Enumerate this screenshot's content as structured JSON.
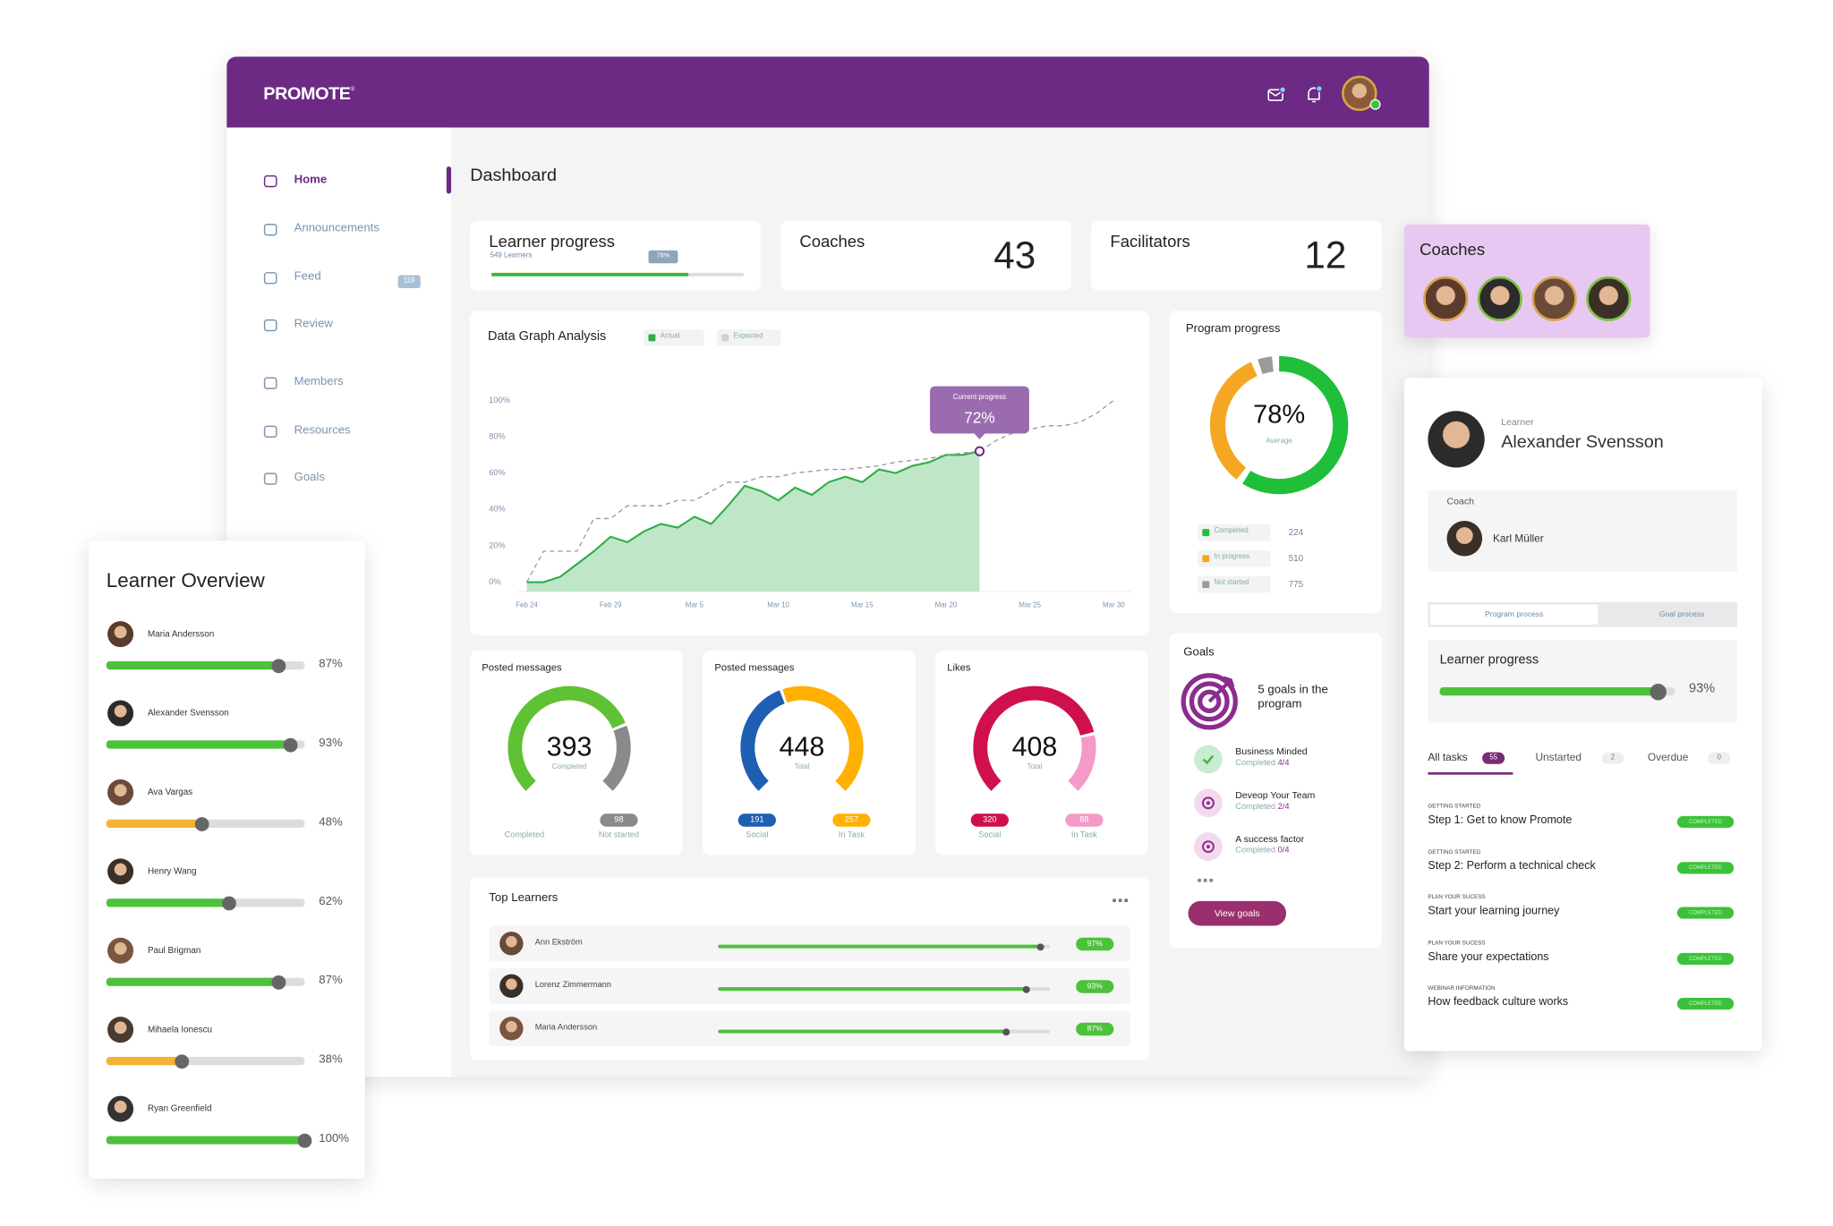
{
  "header": {
    "brand": "PROMOTE",
    "trademark": "®"
  },
  "sidebar": {
    "items": [
      {
        "label": "Home",
        "active": true
      },
      {
        "label": "Announcements"
      },
      {
        "label": "Feed",
        "badge": 119
      },
      {
        "label": "Review"
      },
      {
        "label": "Members"
      },
      {
        "label": "Resources"
      },
      {
        "label": "Goals"
      }
    ]
  },
  "page_title": "Dashboard",
  "learner_progress": {
    "title": "Learner progress",
    "subtitle": "549 Learners",
    "value": 78,
    "label": "78%"
  },
  "coaches": {
    "title": "Coaches",
    "value": 43
  },
  "facilitators": {
    "title": "Facilitators",
    "value": 12
  },
  "coaches_panel": {
    "title": "Coaches"
  },
  "data_graph": {
    "type": "area",
    "title": "Data Graph Analysis",
    "categories": [
      "Feb 24",
      null,
      null,
      null,
      null,
      "Feb 29",
      null,
      null,
      null,
      null,
      "Mar 5",
      null,
      null,
      null,
      null,
      "Mar 10",
      null,
      null,
      null,
      null,
      "Mar 15",
      null,
      null,
      null,
      null,
      "Mar 20",
      null,
      null,
      null,
      null,
      "Mar 25",
      null,
      null,
      null,
      null,
      "Mar 30"
    ],
    "series": [
      {
        "name": "Actual",
        "color": "#2fae46",
        "fill": "#bfe6c7",
        "values": [
          0,
          0,
          3,
          10,
          17,
          25,
          22,
          28,
          32,
          30,
          36,
          32,
          42,
          53,
          50,
          45,
          52,
          48,
          55,
          58,
          55,
          62,
          60,
          64,
          66,
          70,
          70,
          72,
          null,
          null,
          null,
          null,
          null,
          null,
          null,
          null
        ]
      },
      {
        "name": "Expected",
        "color": "#9a9a9a",
        "dashed": true,
        "values": [
          0,
          17,
          17,
          17,
          35,
          35,
          42,
          42,
          42,
          45,
          45,
          50,
          55,
          55,
          58,
          58,
          60,
          61,
          62,
          62,
          63,
          64,
          66,
          67,
          68,
          70,
          71,
          72,
          78,
          82,
          84,
          86,
          86,
          88,
          93,
          100
        ]
      }
    ],
    "ylim": [
      0,
      100
    ],
    "yticks": [
      {
        "value": 0,
        "label": "0%"
      },
      {
        "value": 20,
        "label": "20%"
      },
      {
        "value": 40,
        "label": "40%"
      },
      {
        "value": 60,
        "label": "60%"
      },
      {
        "value": 80,
        "label": "80%"
      },
      {
        "value": 100,
        "label": "100%"
      }
    ],
    "grid": false,
    "tooltip": {
      "title": "Current progress",
      "value": 72,
      "label": "72%"
    }
  },
  "program_progress": {
    "title": "Program progress",
    "center": "78%",
    "center_sub": "Average",
    "legend": [
      {
        "label": "Completed",
        "value": 224,
        "color": "#1fbf3a"
      },
      {
        "label": "In progress",
        "value": 510,
        "color": "#f5a623"
      },
      {
        "label": "Not started",
        "value": 775,
        "color": "#9a9a9a"
      }
    ]
  },
  "gauges": [
    {
      "title": "Posted messages",
      "value": 393,
      "sub": "Completed",
      "legend": [
        {
          "label": "Completed",
          "color": "#5ec234"
        },
        {
          "label": "Not started",
          "value": 98,
          "color": "#8a8a8a"
        }
      ]
    },
    {
      "title": "Posted messages",
      "value": 448,
      "sub": "Total",
      "legend": [
        {
          "label": "Social",
          "value": 191,
          "color": "#1e5fb4"
        },
        {
          "label": "In Task",
          "value": 257,
          "color": "#ffb000"
        }
      ]
    },
    {
      "title": "Likes",
      "value": 408,
      "sub": "Total",
      "legend": [
        {
          "label": "Social",
          "value": 320,
          "color": "#d0104c"
        },
        {
          "label": "In Task",
          "value": 88,
          "color": "#f59ac8"
        }
      ]
    }
  ],
  "top_learners": {
    "title": "Top Learners",
    "items": [
      {
        "name": "Ann Ekström",
        "value": 97,
        "label": "97%"
      },
      {
        "name": "Lorenz Zimmermann",
        "value": 93,
        "label": "93%"
      },
      {
        "name": "Maria Andersson",
        "value": 87,
        "label": "87%"
      }
    ]
  },
  "goals": {
    "title": "Goals",
    "summary": "5 goals in the program",
    "button": "View goals",
    "items": [
      {
        "title": "Business Minded",
        "status": "Completed",
        "count": "4/4"
      },
      {
        "title": "Deveop Your Team",
        "status": "Completed",
        "count": "2/4"
      },
      {
        "title": "A success factor",
        "status": "Completed",
        "count": "0/4"
      }
    ]
  },
  "learner_overview": {
    "title": "Learner Overview",
    "items": [
      {
        "name": "Maria Andersson",
        "value": 87,
        "label": "87%",
        "color": "#4cc23a"
      },
      {
        "name": "Alexander Svensson",
        "value": 93,
        "label": "93%",
        "color": "#4cc23a"
      },
      {
        "name": "Ava Vargas",
        "value": 48,
        "label": "48%",
        "color": "#f5b335"
      },
      {
        "name": "Henry Wang",
        "value": 62,
        "label": "62%",
        "color": "#4cc23a"
      },
      {
        "name": "Paul Brigman",
        "value": 87,
        "label": "87%",
        "color": "#4cc23a"
      },
      {
        "name": "Mihaela Ionescu",
        "value": 38,
        "label": "38%",
        "color": "#f5b335"
      },
      {
        "name": "Ryan Greenfield",
        "value": 100,
        "label": "100%",
        "color": "#4cc23a"
      }
    ]
  },
  "learner_detail": {
    "role": "Learner",
    "name": "Alexander Svensson",
    "coach_label": "Coach",
    "coach_name": "Karl Müller",
    "tabs": [
      "Program process",
      "Goal process"
    ],
    "progress": {
      "title": "Learner progress",
      "value": 93,
      "label": "93%"
    },
    "task_tabs": [
      {
        "label": "All tasks",
        "count": 55
      },
      {
        "label": "Unstarted",
        "count": 2
      },
      {
        "label": "Overdue",
        "count": 0
      }
    ],
    "tasks": [
      {
        "category": "GETTING STARTED",
        "title": "Step 1: Get to know Promote",
        "status": "COMPLETED"
      },
      {
        "category": "GETTING STARTED",
        "title": "Step 2: Perform a technical check",
        "status": "COMPLETED"
      },
      {
        "category": "PLAN YOUR SUCESS",
        "title": "Start your learning journey",
        "status": "COMPLETED"
      },
      {
        "category": "PLAN YOUR SUCESS",
        "title": "Share your expectations",
        "status": "COMPLETED"
      },
      {
        "category": "WEBINAR INFORMATION",
        "title": "How feedback culture works",
        "status": "COMPLETED"
      }
    ]
  }
}
